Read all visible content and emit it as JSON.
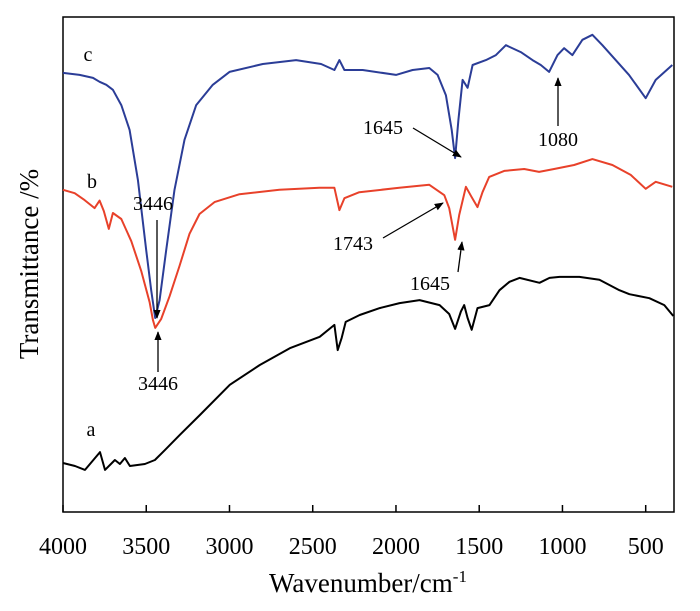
{
  "chart_data": {
    "type": "line",
    "y_label": "Transmittance /%",
    "x_label": "Wavenumber/cm",
    "x_label_sup": "-1",
    "xlim": [
      4000,
      330
    ],
    "xticks": [
      4000,
      3500,
      3000,
      2500,
      2000,
      1500,
      1000,
      500
    ],
    "ylim": [
      0,
      100
    ],
    "yticks": [],
    "series": [
      {
        "name": "a",
        "color": "#000000",
        "x": [
          4000,
          3928,
          3868,
          3778,
          3748,
          3688,
          3658,
          3628,
          3598,
          3508,
          3448,
          3388,
          3298,
          3178,
          2998,
          2818,
          2638,
          2458,
          2370,
          2350,
          2326,
          2302,
          2218,
          2098,
          1978,
          1858,
          1738,
          1680,
          1645,
          1610,
          1590,
          1570,
          1545,
          1510,
          1438,
          1378,
          1318,
          1258,
          1138,
          1078,
          1018,
          898,
          778,
          658,
          598,
          478,
          388,
          334
        ],
        "values": [
          9.9,
          9.3,
          8.5,
          12.1,
          8.5,
          10.5,
          9.7,
          10.9,
          9.3,
          9.7,
          10.5,
          12.5,
          15.6,
          19.6,
          25.7,
          29.7,
          33.1,
          35.4,
          37.8,
          32.7,
          35.2,
          38.4,
          39.8,
          41.2,
          42.2,
          42.8,
          41.8,
          40.0,
          37.0,
          40.5,
          41.8,
          39.2,
          36.8,
          41.2,
          41.8,
          44.8,
          46.5,
          47.3,
          46.3,
          47.3,
          47.5,
          47.5,
          46.9,
          44.8,
          44.0,
          43.2,
          41.8,
          39.6
        ]
      },
      {
        "name": "b",
        "color": "#e8412a",
        "x": [
          4000,
          3930,
          3870,
          3810,
          3780,
          3755,
          3725,
          3700,
          3650,
          3590,
          3530,
          3480,
          3460,
          3446,
          3410,
          3360,
          3300,
          3240,
          3180,
          3090,
          2940,
          2700,
          2460,
          2370,
          2340,
          2310,
          2220,
          1980,
          1800,
          1710,
          1680,
          1645,
          1620,
          1580,
          1545,
          1510,
          1480,
          1440,
          1350,
          1230,
          1140,
          1050,
          930,
          820,
          700,
          590,
          500,
          440,
          340
        ],
        "values": [
          65.1,
          64.4,
          63.0,
          61.4,
          62.9,
          60.8,
          57.2,
          60.4,
          59.2,
          54.7,
          48.7,
          42.4,
          38.8,
          37.2,
          39.0,
          43.6,
          49.7,
          56.2,
          60.2,
          62.6,
          64.2,
          65.1,
          65.5,
          65.5,
          61.0,
          63.4,
          64.6,
          65.5,
          66.1,
          64.0,
          61.4,
          55.0,
          60.0,
          65.7,
          63.6,
          61.6,
          64.6,
          67.7,
          68.9,
          69.3,
          68.7,
          69.3,
          70.1,
          71.3,
          70.1,
          68.1,
          65.3,
          66.7,
          65.7
        ]
      },
      {
        "name": "c",
        "color": "#2b3d97",
        "x": [
          4000,
          3900,
          3820,
          3780,
          3740,
          3700,
          3650,
          3600,
          3550,
          3500,
          3470,
          3446,
          3420,
          3380,
          3330,
          3270,
          3200,
          3100,
          3000,
          2800,
          2600,
          2450,
          2370,
          2340,
          2310,
          2200,
          2000,
          1900,
          1800,
          1750,
          1700,
          1665,
          1645,
          1625,
          1600,
          1570,
          1540,
          1460,
          1400,
          1340,
          1250,
          1180,
          1130,
          1080,
          1030,
          990,
          940,
          880,
          820,
          760,
          680,
          600,
          500,
          440,
          340
        ],
        "values": [
          88.7,
          88.3,
          87.7,
          86.9,
          86.3,
          85.3,
          82.2,
          77.2,
          67.1,
          52.9,
          44.8,
          39.2,
          42.8,
          52.9,
          65.1,
          75.2,
          82.2,
          86.3,
          88.9,
          90.5,
          91.3,
          90.5,
          89.3,
          91.3,
          89.3,
          89.3,
          88.3,
          89.3,
          89.7,
          88.3,
          84.2,
          77.2,
          71.5,
          79.2,
          87.3,
          85.7,
          90.3,
          91.3,
          92.3,
          94.3,
          92.9,
          91.3,
          90.3,
          88.9,
          92.3,
          93.7,
          92.3,
          95.4,
          96.4,
          94.3,
          91.3,
          88.3,
          83.6,
          87.3,
          90.3
        ]
      }
    ],
    "annotations": [
      "3446",
      "3446",
      "1645",
      "1080",
      "1743",
      "1645"
    ]
  }
}
